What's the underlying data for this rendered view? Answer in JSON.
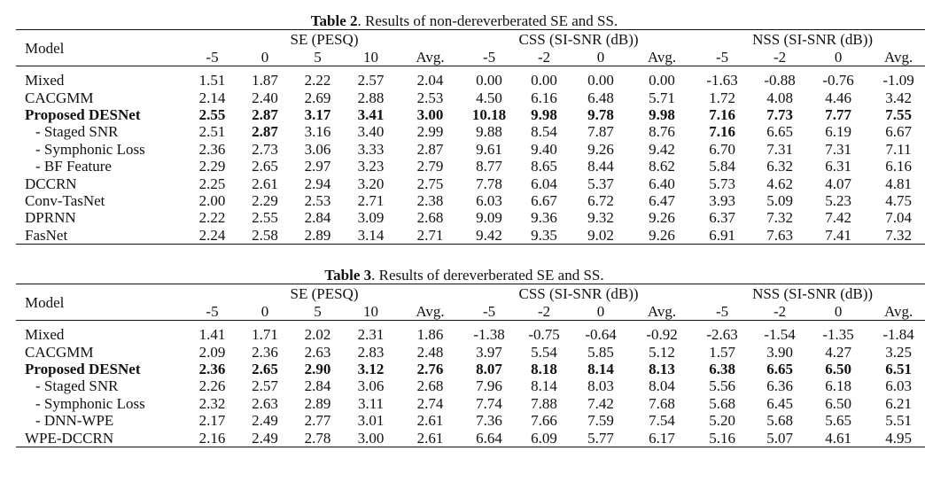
{
  "table2": {
    "caption_label": "Table 2",
    "caption_text": ". Results of non-dereverberated SE and SS.",
    "header": {
      "model": "Model",
      "groups": [
        "SE (PESQ)",
        "CSS (SI-SNR (dB))",
        "NSS (SI-SNR (dB))"
      ],
      "subcols": [
        "-5",
        "0",
        "5",
        "10",
        "Avg.",
        "-5",
        "-2",
        "0",
        "Avg.",
        "-5",
        "-2",
        "0",
        "Avg."
      ]
    },
    "rows": [
      {
        "model": "Mixed",
        "sub": false,
        "values": [
          "1.51",
          "1.87",
          "2.22",
          "2.57",
          "2.04",
          "0.00",
          "0.00",
          "0.00",
          "0.00",
          "-1.63",
          "-0.88",
          "-0.76",
          "-1.09"
        ],
        "bold": []
      },
      {
        "model": "CACGMM",
        "sub": false,
        "values": [
          "2.14",
          "2.40",
          "2.69",
          "2.88",
          "2.53",
          "4.50",
          "6.16",
          "6.48",
          "5.71",
          "1.72",
          "4.08",
          "4.46",
          "3.42"
        ],
        "bold": []
      },
      {
        "model": "Proposed DESNet",
        "sub": false,
        "values": [
          "2.55",
          "2.87",
          "3.17",
          "3.41",
          "3.00",
          "10.18",
          "9.98",
          "9.78",
          "9.98",
          "7.16",
          "7.73",
          "7.77",
          "7.55"
        ],
        "bold": [
          0,
          1,
          2,
          3,
          4,
          5,
          6,
          7,
          8,
          9,
          10,
          11,
          12
        ]
      },
      {
        "model": "- Staged SNR",
        "sub": true,
        "values": [
          "2.51",
          "2.87",
          "3.16",
          "3.40",
          "2.99",
          "9.88",
          "8.54",
          "7.87",
          "8.76",
          "7.16",
          "6.65",
          "6.19",
          "6.67"
        ],
        "bold": [
          1,
          9
        ]
      },
      {
        "model": "- Symphonic Loss",
        "sub": true,
        "values": [
          "2.36",
          "2.73",
          "3.06",
          "3.33",
          "2.87",
          "9.61",
          "9.40",
          "9.26",
          "9.42",
          "6.70",
          "7.31",
          "7.31",
          "7.11"
        ],
        "bold": []
      },
      {
        "model": "- BF Feature",
        "sub": true,
        "values": [
          "2.29",
          "2.65",
          "2.97",
          "3.23",
          "2.79",
          "8.77",
          "8.65",
          "8.44",
          "8.62",
          "5.84",
          "6.32",
          "6.31",
          "6.16"
        ],
        "bold": []
      },
      {
        "model": "DCCRN",
        "sub": false,
        "values": [
          "2.25",
          "2.61",
          "2.94",
          "3.20",
          "2.75",
          "7.78",
          "6.04",
          "5.37",
          "6.40",
          "5.73",
          "4.62",
          "4.07",
          "4.81"
        ],
        "bold": []
      },
      {
        "model": "Conv-TasNet",
        "sub": false,
        "values": [
          "2.00",
          "2.29",
          "2.53",
          "2.71",
          "2.38",
          "6.03",
          "6.67",
          "6.72",
          "6.47",
          "3.93",
          "5.09",
          "5.23",
          "4.75"
        ],
        "bold": []
      },
      {
        "model": "DPRNN",
        "sub": false,
        "values": [
          "2.22",
          "2.55",
          "2.84",
          "3.09",
          "2.68",
          "9.09",
          "9.36",
          "9.32",
          "9.26",
          "6.37",
          "7.32",
          "7.42",
          "7.04"
        ],
        "bold": []
      },
      {
        "model": "FasNet",
        "sub": false,
        "values": [
          "2.24",
          "2.58",
          "2.89",
          "3.14",
          "2.71",
          "9.42",
          "9.35",
          "9.02",
          "9.26",
          "6.91",
          "7.63",
          "7.41",
          "7.32"
        ],
        "bold": []
      }
    ]
  },
  "table3": {
    "caption_label": "Table 3",
    "caption_text": ". Results of dereverberated SE and SS.",
    "header": {
      "model": "Model",
      "groups": [
        "SE (PESQ)",
        "CSS (SI-SNR (dB))",
        "NSS (SI-SNR (dB))"
      ],
      "subcols": [
        "-5",
        "0",
        "5",
        "10",
        "Avg.",
        "-5",
        "-2",
        "0",
        "Avg.",
        "-5",
        "-2",
        "0",
        "Avg."
      ]
    },
    "rows": [
      {
        "model": "Mixed",
        "sub": false,
        "values": [
          "1.41",
          "1.71",
          "2.02",
          "2.31",
          "1.86",
          "-1.38",
          "-0.75",
          "-0.64",
          "-0.92",
          "-2.63",
          "-1.54",
          "-1.35",
          "-1.84"
        ],
        "bold": []
      },
      {
        "model": "CACGMM",
        "sub": false,
        "values": [
          "2.09",
          "2.36",
          "2.63",
          "2.83",
          "2.48",
          "3.97",
          "5.54",
          "5.85",
          "5.12",
          "1.57",
          "3.90",
          "4.27",
          "3.25"
        ],
        "bold": []
      },
      {
        "model": "Proposed DESNet",
        "sub": false,
        "values": [
          "2.36",
          "2.65",
          "2.90",
          "3.12",
          "2.76",
          "8.07",
          "8.18",
          "8.14",
          "8.13",
          "6.38",
          "6.65",
          "6.50",
          "6.51"
        ],
        "bold": [
          0,
          1,
          2,
          3,
          4,
          5,
          6,
          7,
          8,
          9,
          10,
          11,
          12
        ]
      },
      {
        "model": "- Staged SNR",
        "sub": true,
        "values": [
          "2.26",
          "2.57",
          "2.84",
          "3.06",
          "2.68",
          "7.96",
          "8.14",
          "8.03",
          "8.04",
          "5.56",
          "6.36",
          "6.18",
          "6.03"
        ],
        "bold": []
      },
      {
        "model": "- Symphonic Loss",
        "sub": true,
        "values": [
          "2.32",
          "2.63",
          "2.89",
          "3.11",
          "2.74",
          "7.74",
          "7.88",
          "7.42",
          "7.68",
          "5.68",
          "6.45",
          "6.50",
          "6.21"
        ],
        "bold": []
      },
      {
        "model": "- DNN-WPE",
        "sub": true,
        "values": [
          "2.17",
          "2.49",
          "2.77",
          "3.01",
          "2.61",
          "7.36",
          "7.66",
          "7.59",
          "7.54",
          "5.20",
          "5.68",
          "5.65",
          "5.51"
        ],
        "bold": []
      },
      {
        "model": "WPE-DCCRN",
        "sub": false,
        "values": [
          "2.16",
          "2.49",
          "2.78",
          "3.00",
          "2.61",
          "6.64",
          "6.09",
          "5.77",
          "6.17",
          "5.16",
          "5.07",
          "4.61",
          "4.95"
        ],
        "bold": []
      }
    ]
  }
}
